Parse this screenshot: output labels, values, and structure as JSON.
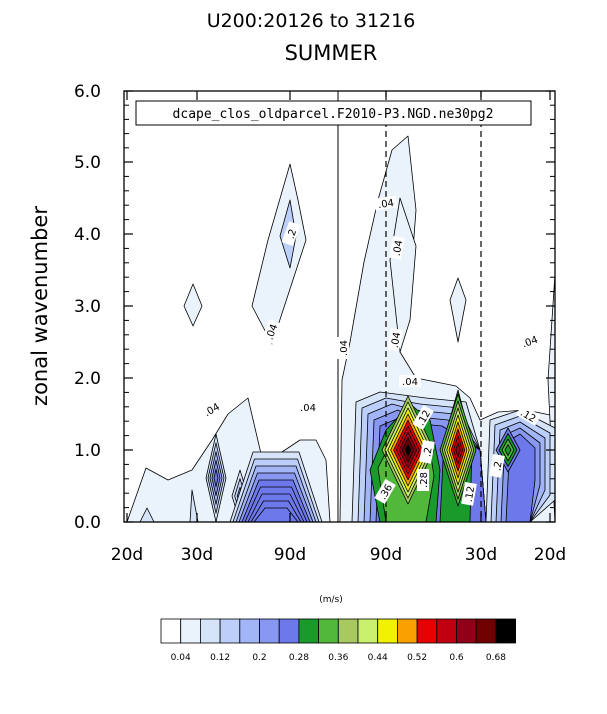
{
  "chart_data": {
    "type": "contour",
    "title": "U200:20126 to 31216",
    "subtitle": "SUMMER",
    "legend_text": "dcape_clos_oldparcel.F2010-P3.NGD.ne30pg2",
    "ylabel": "zonal wavenumber",
    "ylim": [
      0,
      6
    ],
    "yticks": [
      "0.0",
      "1.0",
      "2.0",
      "3.0",
      "4.0",
      "5.0",
      "6.0"
    ],
    "xticks": [
      "20d",
      "30d",
      "90d",
      "90d",
      "30d",
      "20d"
    ],
    "units": "(m/s)",
    "colorbar_labels": [
      "0.04",
      "0.12",
      "0.2",
      "0.28",
      "0.36",
      "0.44",
      "0.52",
      "0.6",
      "0.68"
    ],
    "colorbar_colors": [
      "#ffffff",
      "#eaf2fc",
      "#d6e4fa",
      "#bccefa",
      "#a2b5f6",
      "#8898f0",
      "#6d78ea",
      "#1a9a2a",
      "#52b83c",
      "#a8c860",
      "#c8f06c",
      "#f0f000",
      "#f8a000",
      "#e80000",
      "#c00010",
      "#900018",
      "#700000",
      "#000000"
    ],
    "contour_labels": [
      ".04",
      ".04",
      ".04",
      ".04",
      ".04",
      ".04",
      ".04",
      ".04",
      ".04",
      ".12",
      ".2",
      ".36",
      ".28",
      ".12",
      ".2",
      ".12",
      ".2"
    ]
  }
}
